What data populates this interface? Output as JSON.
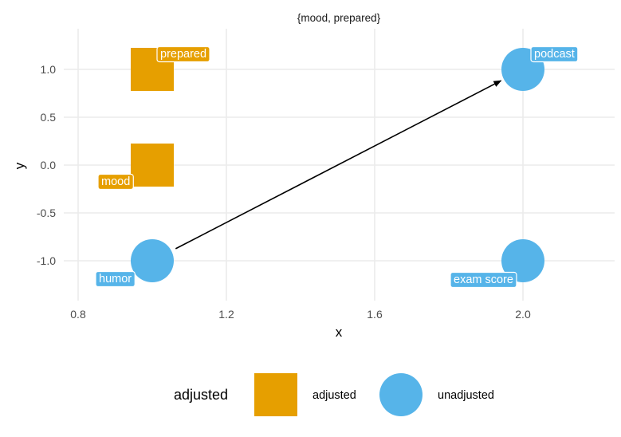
{
  "chart_data": {
    "type": "scatter",
    "title": "{mood, prepared}",
    "xlabel": "x",
    "ylabel": "y",
    "xlim": [
      0.78,
      2.25
    ],
    "ylim": [
      -1.4,
      1.4
    ],
    "x_ticks": [
      0.8,
      1.2,
      1.6,
      2.0
    ],
    "x_tick_labels": [
      "0.8",
      "1.2",
      "1.6",
      "2.0"
    ],
    "y_ticks": [
      1.0,
      0.5,
      0.0,
      -0.5,
      -1.0
    ],
    "y_tick_labels": [
      "1.0",
      "0.5",
      "0.0",
      "-0.5",
      "-1.0"
    ],
    "grid": true,
    "nodes": [
      {
        "name": "prepared",
        "x": 1.0,
        "y": 1.0,
        "adjusted": "adjusted"
      },
      {
        "name": "mood",
        "x": 1.0,
        "y": 0.0,
        "adjusted": "adjusted"
      },
      {
        "name": "humor",
        "x": 1.0,
        "y": -1.0,
        "adjusted": "unadjusted"
      },
      {
        "name": "podcast",
        "x": 2.0,
        "y": 1.0,
        "adjusted": "unadjusted"
      },
      {
        "name": "exam score",
        "x": 2.0,
        "y": -1.0,
        "adjusted": "unadjusted"
      }
    ],
    "edges": [
      {
        "from": "humor",
        "to": "podcast"
      }
    ],
    "legend": {
      "title": "adjusted",
      "position": "bottom",
      "items": [
        {
          "label": "adjusted",
          "shape": "square",
          "color": "#E69F00"
        },
        {
          "label": "unadjusted",
          "shape": "circle",
          "color": "#56B4E9"
        }
      ]
    },
    "colors": {
      "adjusted": "#E69F00",
      "unadjusted": "#56B4E9"
    }
  }
}
